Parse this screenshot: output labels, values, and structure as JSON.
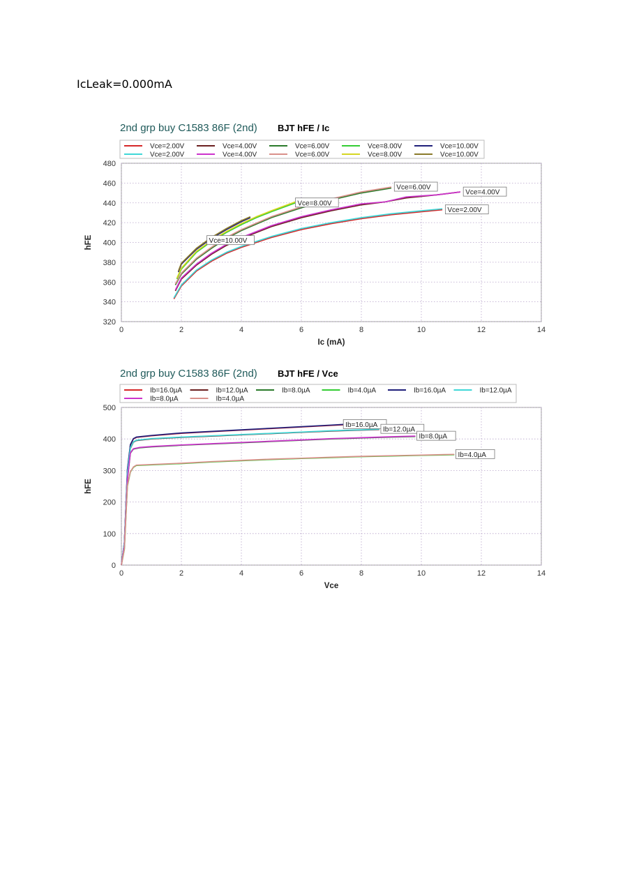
{
  "page_header": "IcLeak=0.000mA",
  "chart_data": [
    {
      "type": "line",
      "title_prefix": "2nd grp buy  C1583  86F  (2nd)",
      "title": "BJT hFE / Ic",
      "xlabel": "Ic (mA)",
      "ylabel": "hFE",
      "xlim": [
        0,
        14
      ],
      "ylim": [
        320,
        480
      ],
      "xticks": [
        0,
        2,
        4,
        6,
        8,
        10,
        12,
        14
      ],
      "yticks": [
        320,
        340,
        360,
        380,
        400,
        420,
        440,
        460,
        480
      ],
      "grid": true,
      "legend_position": "top",
      "series": [
        {
          "name": "Vce=2.00V",
          "color": "#d62728",
          "x": [
            1.75,
            2.0,
            2.5,
            3.0,
            3.5,
            4.0,
            5.0,
            6.0,
            7.0,
            8.0,
            9.0,
            10.0,
            10.7
          ],
          "y": [
            343,
            356,
            371,
            381,
            389,
            395,
            405,
            413,
            419,
            424,
            428,
            431,
            433
          ]
        },
        {
          "name": "Vce=4.00V",
          "color": "#6b1f1f",
          "x": [
            1.8,
            2.0,
            2.5,
            3.0,
            3.5,
            4.0,
            5.0,
            6.0,
            7.0,
            8.0,
            8.8,
            9.5,
            10.5,
            11.3
          ],
          "y": [
            351,
            363,
            377,
            388,
            397,
            404,
            416,
            425,
            432,
            438,
            441,
            445,
            448,
            451
          ]
        },
        {
          "name": "Vce=6.00V",
          "color": "#2a7a2a",
          "x": [
            1.8,
            2.0,
            2.5,
            3.0,
            3.5,
            4.0,
            5.0,
            6.0,
            7.0,
            8.0,
            9.0
          ],
          "y": [
            357,
            368,
            383,
            394,
            404,
            412,
            425,
            435,
            443,
            450,
            455
          ]
        },
        {
          "name": "Vce=8.00V",
          "color": "#33cc33",
          "x": [
            1.85,
            2.0,
            2.5,
            3.0,
            3.5,
            4.0,
            4.5,
            5.0,
            5.8
          ],
          "y": [
            363,
            373,
            390,
            401,
            410,
            418,
            425,
            431,
            440
          ]
        },
        {
          "name": "Vce=10.00V",
          "color": "#1f1f7a",
          "x": [
            1.9,
            2.0,
            2.5,
            3.0,
            3.5,
            4.0,
            4.3
          ],
          "y": [
            370,
            378,
            393,
            404,
            413,
            421,
            425
          ]
        },
        {
          "name": "Vce=2.00V",
          "color": "#3fd7d7",
          "x": [
            1.75,
            2.0,
            2.5,
            3.0,
            3.5,
            4.0,
            5.0,
            6.0,
            7.0,
            8.0,
            9.0,
            10.0,
            10.7
          ],
          "y": [
            344,
            357,
            372,
            382,
            390,
            396,
            406,
            414,
            420,
            425,
            429,
            432,
            434
          ]
        },
        {
          "name": "Vce=4.00V",
          "color": "#cc33cc",
          "x": [
            1.8,
            2.0,
            2.5,
            3.0,
            3.5,
            4.0,
            5.0,
            6.0,
            7.0,
            8.0,
            8.8,
            9.5,
            10.5,
            11.3
          ],
          "y": [
            352,
            364,
            378,
            389,
            398,
            405,
            417,
            426,
            433,
            439,
            441,
            446,
            448,
            451
          ]
        },
        {
          "name": "Vce=6.00V",
          "color": "#d9908a",
          "x": [
            1.8,
            2.0,
            2.5,
            3.0,
            3.5,
            4.0,
            5.0,
            6.0,
            7.0,
            8.0,
            9.0
          ],
          "y": [
            358,
            369,
            384,
            395,
            405,
            413,
            426,
            436,
            444,
            451,
            456
          ]
        },
        {
          "name": "Vce=8.00V",
          "color": "#d6d622",
          "x": [
            1.85,
            2.0,
            2.5,
            3.0,
            3.5,
            4.0,
            4.5,
            5.0,
            5.8
          ],
          "y": [
            364,
            374,
            391,
            402,
            411,
            419,
            426,
            432,
            441
          ]
        },
        {
          "name": "Vce=10.00V",
          "color": "#8a7a2a",
          "x": [
            1.9,
            2.0,
            2.5,
            3.0,
            3.5,
            4.0,
            4.3
          ],
          "y": [
            371,
            379,
            394,
            405,
            414,
            422,
            426
          ]
        }
      ],
      "annotations": [
        {
          "text": "Vce=6.00V",
          "x": 9.1,
          "y": 456
        },
        {
          "text": "Vce=4.00V",
          "x": 11.4,
          "y": 451
        },
        {
          "text": "Vce=8.00V",
          "x": 5.8,
          "y": 440
        },
        {
          "text": "Vce=2.00V",
          "x": 10.8,
          "y": 433
        },
        {
          "text": "Vce=10.00V",
          "x": 2.85,
          "y": 402
        }
      ]
    },
    {
      "type": "line",
      "title_prefix": "2nd grp buy  C1583  86F  (2nd)",
      "title": "BJT hFE / Vce",
      "xlabel": "Vce",
      "ylabel": "hFE",
      "xlim": [
        0,
        14
      ],
      "ylim": [
        0,
        500
      ],
      "xticks": [
        0,
        2,
        4,
        6,
        8,
        10,
        12,
        14
      ],
      "yticks": [
        0,
        100,
        200,
        300,
        400,
        500
      ],
      "grid": true,
      "legend_position": "top",
      "series": [
        {
          "name": "Ib=16.0µA",
          "color": "#d62728",
          "x": [
            0,
            0.1,
            0.2,
            0.3,
            0.4,
            0.5,
            1,
            2,
            3,
            4,
            5,
            6,
            7,
            7.4
          ],
          "y": [
            0,
            70,
            300,
            380,
            400,
            405,
            410,
            418,
            423,
            428,
            433,
            438,
            443,
            445
          ]
        },
        {
          "name": "Ib=12.0µA",
          "color": "#6b1f1f",
          "x": [
            0,
            0.1,
            0.2,
            0.3,
            0.4,
            0.5,
            1,
            2,
            3,
            4,
            5,
            6,
            7,
            8,
            8.6
          ],
          "y": [
            0,
            70,
            290,
            370,
            390,
            395,
            400,
            405,
            409,
            413,
            417,
            421,
            425,
            428,
            430
          ]
        },
        {
          "name": "Ib=8.0µA",
          "color": "#2a7a2a",
          "x": [
            0,
            0.1,
            0.2,
            0.3,
            0.4,
            0.6,
            1,
            2,
            3,
            4,
            5,
            6,
            7,
            8,
            9,
            9.8
          ],
          "y": [
            0,
            60,
            270,
            355,
            368,
            372,
            375,
            380,
            384,
            388,
            392,
            396,
            400,
            403,
            406,
            408
          ]
        },
        {
          "name": "Ib=4.0µA",
          "color": "#33cc33",
          "x": [
            0,
            0.1,
            0.2,
            0.3,
            0.4,
            0.5,
            1,
            2,
            3,
            4,
            5,
            6,
            7,
            8,
            9,
            10,
            11.1
          ],
          "y": [
            0,
            50,
            250,
            295,
            310,
            316,
            318,
            322,
            327,
            331,
            335,
            338,
            341,
            344,
            346,
            348,
            350
          ]
        },
        {
          "name": "Ib=16.0µA",
          "color": "#1f1f7a",
          "x": [
            0,
            0.1,
            0.2,
            0.3,
            0.4,
            0.5,
            1,
            2,
            3,
            4,
            5,
            6,
            7,
            7.4
          ],
          "y": [
            0,
            72,
            302,
            382,
            401,
            406,
            411,
            419,
            424,
            429,
            434,
            439,
            444,
            446
          ]
        },
        {
          "name": "Ib=12.0µA",
          "color": "#3fd7d7",
          "x": [
            0,
            0.1,
            0.2,
            0.3,
            0.4,
            0.5,
            1,
            2,
            3,
            4,
            5,
            6,
            7,
            8,
            8.6
          ],
          "y": [
            0,
            72,
            292,
            372,
            391,
            396,
            401,
            406,
            410,
            414,
            418,
            422,
            426,
            429,
            431
          ]
        },
        {
          "name": "Ib=8.0µA",
          "color": "#cc33cc",
          "x": [
            0,
            0.1,
            0.2,
            0.3,
            0.4,
            0.6,
            1,
            2,
            3,
            4,
            5,
            6,
            7,
            8,
            9,
            9.8
          ],
          "y": [
            0,
            62,
            272,
            356,
            369,
            373,
            376,
            381,
            385,
            389,
            393,
            397,
            401,
            404,
            407,
            409
          ]
        },
        {
          "name": "Ib=4.0µA",
          "color": "#d9908a",
          "x": [
            0,
            0.1,
            0.2,
            0.3,
            0.4,
            0.5,
            1,
            2,
            3,
            4,
            5,
            6,
            7,
            8,
            9,
            10,
            11.1
          ],
          "y": [
            0,
            52,
            252,
            296,
            311,
            317,
            319,
            323,
            328,
            332,
            336,
            339,
            342,
            345,
            347,
            349,
            351
          ]
        }
      ],
      "annotations": [
        {
          "text": "Ib=16.0µA",
          "x": 7.4,
          "y": 446
        },
        {
          "text": "Ib=12.0µA",
          "x": 8.65,
          "y": 431
        },
        {
          "text": "Ib=8.0µA",
          "x": 9.85,
          "y": 409
        },
        {
          "text": "Ib=4.0µA",
          "x": 11.15,
          "y": 351
        }
      ]
    }
  ]
}
